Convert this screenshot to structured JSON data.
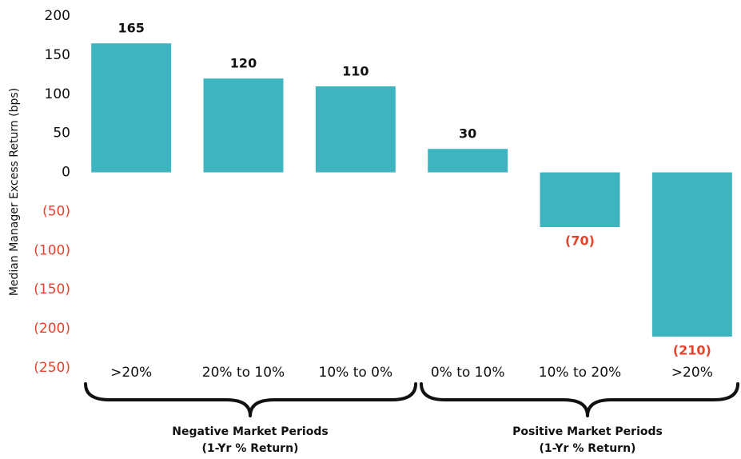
{
  "chart_data": {
    "type": "bar",
    "y_axis_label": "Median Manager Excess Return (bps)",
    "categories": [
      ">20%",
      "20% to 10%",
      "10% to 0%",
      "0% to 10%",
      "10% to 20%",
      ">20%"
    ],
    "values": [
      165,
      120,
      110,
      30,
      -70,
      -210
    ],
    "value_labels": [
      "165",
      "120",
      "110",
      "30",
      "(70)",
      "(210)"
    ],
    "color": "#3db4be",
    "negative_label_color": "#e6432d",
    "ylim": [
      -250,
      200
    ],
    "yticks": [
      200,
      150,
      100,
      50,
      0,
      {
        "value": -50,
        "label": "(50)"
      },
      {
        "value": -100,
        "label": "(100)"
      },
      {
        "value": -150,
        "label": "(150)"
      },
      {
        "value": -200,
        "label": "(200)"
      },
      {
        "value": -250,
        "label": "(250)"
      }
    ],
    "groups": [
      {
        "label": "Negative Market Periods",
        "sublabel": "(1-Yr % Return)"
      },
      {
        "label": "Positive Market Periods",
        "sublabel": "(1-Yr % Return)"
      }
    ]
  }
}
